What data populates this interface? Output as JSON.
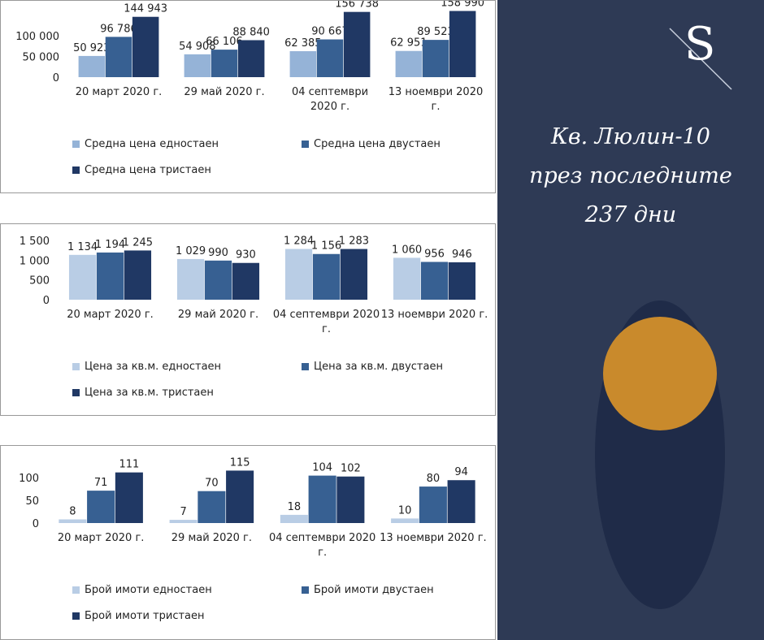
{
  "chart_data": [
    {
      "type": "bar",
      "categories": [
        "20 март 2020 г.",
        "29 май 2020 г.",
        "04 септември 2020 г.",
        "13 ноември 2020 г."
      ],
      "series": [
        {
          "name": "Средна цена едностаен",
          "color": "#95b3d7",
          "values": [
            50923,
            54908,
            62385,
            62951
          ],
          "value_labels": [
            "50 923",
            "54 908",
            "62 385",
            "62 951"
          ]
        },
        {
          "name": "Средна цена двустаен",
          "color": "#376092",
          "values": [
            96786,
            66106,
            90667,
            89523
          ],
          "value_labels": [
            "96 786",
            "66 106",
            "90 667",
            "89 523"
          ]
        },
        {
          "name": "Средна цена тристаен",
          "color": "#203864",
          "values": [
            144943,
            88840,
            156738,
            158990
          ],
          "value_labels": [
            "144 943",
            "88 840",
            "156 738",
            "158 990"
          ]
        }
      ],
      "ylim": [
        0,
        160000
      ],
      "yticks": [
        0,
        {
          "value": 50000,
          "label": "50 000"
        },
        {
          "value": 100000,
          "label": "100 000"
        }
      ]
    },
    {
      "type": "bar",
      "categories": [
        "20 март 2020 г.",
        "29 май 2020 г.",
        "04 септември 2020 г.",
        "13 ноември 2020 г."
      ],
      "series": [
        {
          "name": "Цена за кв.м. едностаен",
          "color": "#b9cde5",
          "values": [
            1134,
            1029,
            1284,
            1060
          ],
          "value_labels": [
            "1 134",
            "1 029",
            "1 284",
            "1 060"
          ]
        },
        {
          "name": "Цена за кв.м. двустаен",
          "color": "#376092",
          "values": [
            1194,
            990,
            1156,
            956
          ],
          "value_labels": [
            "1 194",
            "990",
            "1 156",
            "956"
          ]
        },
        {
          "name": "Цена за кв.м. тристаен",
          "color": "#203864",
          "values": [
            1245,
            930,
            1283,
            946
          ],
          "value_labels": [
            "1 245",
            "930",
            "1 283",
            "946"
          ]
        }
      ],
      "ylim": [
        0,
        1500
      ],
      "yticks": [
        0,
        500,
        {
          "value": 1000,
          "label": "1 000"
        },
        {
          "value": 1500,
          "label": "1 500"
        }
      ]
    },
    {
      "type": "bar",
      "categories": [
        "20 март 2020 г.",
        "29 май 2020 г.",
        "04 септември 2020 г.",
        "13 ноември 2020 г."
      ],
      "series": [
        {
          "name": "Брой имоти едностаен",
          "color": "#b9cde5",
          "values": [
            8,
            7,
            18,
            10
          ]
        },
        {
          "name": "Брой имоти двустаен",
          "color": "#376092",
          "values": [
            71,
            70,
            104,
            80
          ]
        },
        {
          "name": "Брой имоти тристаен",
          "color": "#203864",
          "values": [
            111,
            115,
            102,
            94
          ]
        }
      ],
      "ylim": [
        0,
        130
      ],
      "yticks": [
        0,
        50,
        100
      ]
    }
  ],
  "panel": {
    "logo": "S",
    "title_lines": [
      "Кв. Люлин-10",
      "през последните",
      "237 дни"
    ]
  }
}
